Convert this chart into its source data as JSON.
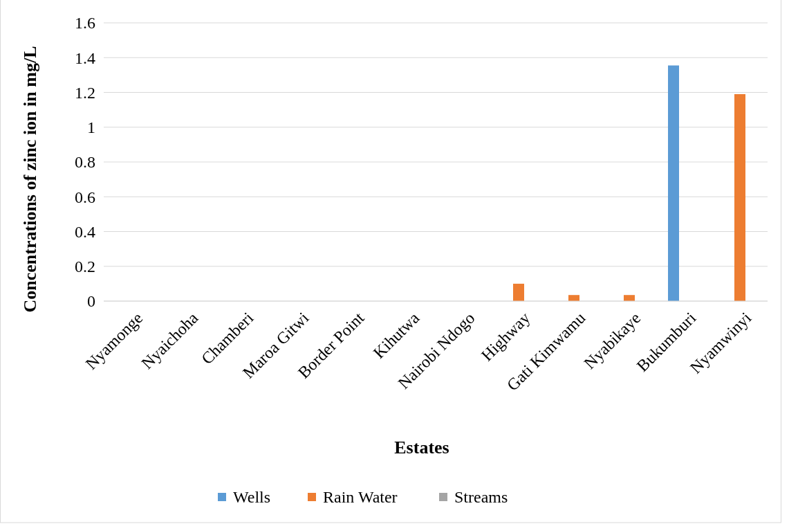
{
  "chart_data": {
    "type": "bar",
    "xlabel": "Estates",
    "ylabel": "Concentrations of zinc ion in mg/L",
    "categories": [
      "Nyamonge",
      "Nyaichoha",
      "Chamberi",
      "Maroa Gitwi",
      "Border Point",
      "Kihutwa",
      "Nairobi Ndogo",
      "Highway",
      "Gati Kimwamu",
      "Nyabikaye",
      "Bukumburi",
      "Nyamwinyi"
    ],
    "series": [
      {
        "name": "Wells",
        "color": "#5b9bd5",
        "values": [
          0,
          0,
          0,
          0,
          0,
          0,
          0,
          0,
          0,
          0,
          1.355,
          0
        ]
      },
      {
        "name": "Rain Water",
        "color": "#ed7d31",
        "values": [
          0,
          0,
          0,
          0,
          0,
          0,
          0,
          0.1,
          0.035,
          0.035,
          0,
          1.19
        ]
      },
      {
        "name": "Streams",
        "color": "#a5a5a5",
        "values": [
          0,
          0,
          0,
          0,
          0,
          0,
          0,
          0,
          0,
          0,
          0,
          0
        ]
      }
    ],
    "ylim": [
      0,
      1.6
    ],
    "yticks": [
      0,
      0.2,
      0.4,
      0.6,
      0.8,
      1,
      1.2,
      1.4,
      1.6
    ],
    "grid": "y",
    "legend": "bottom"
  }
}
